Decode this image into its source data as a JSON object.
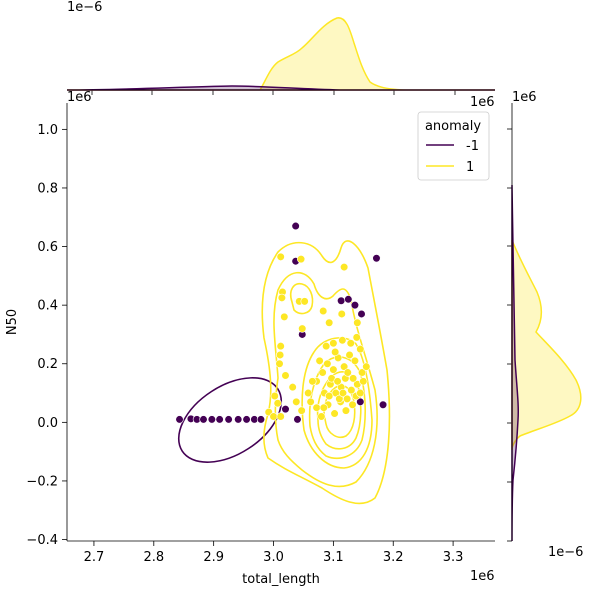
{
  "chart_data": {
    "type": "scatter",
    "xlabel": "total_length",
    "ylabel": "N50",
    "x_scale_label": "1e6",
    "y_scale_label": "1e6",
    "top_marginal_scale_label": "1e−6",
    "right_marginal_scale_label": "1e−6",
    "main_y_offset_label": "1e6",
    "main_x_offset_label": "1e6",
    "right_marginal_offset_label": "1e6",
    "xlim": [
      2.655,
      3.37
    ],
    "ylim": [
      -0.405,
      1.09
    ],
    "x_ticks": [
      2.7,
      2.8,
      2.9,
      3.0,
      3.1,
      3.2,
      3.3
    ],
    "y_ticks": [
      -0.4,
      -0.2,
      0.0,
      0.2,
      0.4,
      0.6,
      0.8,
      1.0
    ],
    "x_tick_labels": [
      "2.7",
      "2.8",
      "2.9",
      "3.0",
      "3.1",
      "3.2",
      "3.3"
    ],
    "y_tick_labels": [
      "−0.4",
      "−0.2",
      "0.0",
      "0.2",
      "0.4",
      "0.6",
      "0.8",
      "1.0"
    ],
    "legend": {
      "title": "anomaly",
      "placement": "top-right",
      "entries": [
        {
          "label": "-1",
          "color": "#440154"
        },
        {
          "label": "1",
          "color": "#fde725"
        }
      ]
    },
    "colors": {
      "anomaly": "#440154",
      "normal": "#fde725"
    },
    "series": [
      {
        "name": "-1",
        "color": "#440154",
        "points": [
          {
            "x": 2.843,
            "y": 0.01
          },
          {
            "x": 2.862,
            "y": 0.012
          },
          {
            "x": 2.872,
            "y": 0.01
          },
          {
            "x": 2.883,
            "y": 0.01
          },
          {
            "x": 2.897,
            "y": 0.01
          },
          {
            "x": 2.91,
            "y": 0.01
          },
          {
            "x": 2.925,
            "y": 0.01
          },
          {
            "x": 2.941,
            "y": 0.01
          },
          {
            "x": 2.955,
            "y": 0.01
          },
          {
            "x": 2.968,
            "y": 0.01
          },
          {
            "x": 2.979,
            "y": 0.01
          },
          {
            "x": 3.037,
            "y": 0.67
          },
          {
            "x": 3.037,
            "y": 0.55
          },
          {
            "x": 3.172,
            "y": 0.56
          },
          {
            "x": 3.113,
            "y": 0.415
          },
          {
            "x": 3.125,
            "y": 0.42
          },
          {
            "x": 3.147,
            "y": 0.37
          },
          {
            "x": 3.136,
            "y": 0.4
          },
          {
            "x": 3.183,
            "y": 0.06
          },
          {
            "x": 3.145,
            "y": 0.07
          },
          {
            "x": 3.04,
            "y": 0.01
          },
          {
            "x": 3.048,
            "y": 0.3
          },
          {
            "x": 3.02,
            "y": 0.045
          }
        ]
      },
      {
        "name": "1",
        "color": "#fde725",
        "points": [
          {
            "x": 3.012,
            "y": 0.565
          },
          {
            "x": 3.046,
            "y": 0.557
          },
          {
            "x": 3.118,
            "y": 0.53
          },
          {
            "x": 3.015,
            "y": 0.445
          },
          {
            "x": 3.014,
            "y": 0.425
          },
          {
            "x": 3.043,
            "y": 0.413
          },
          {
            "x": 3.052,
            "y": 0.413
          },
          {
            "x": 3.018,
            "y": 0.36
          },
          {
            "x": 3.048,
            "y": 0.32
          },
          {
            "x": 3.083,
            "y": 0.38
          },
          {
            "x": 3.093,
            "y": 0.34
          },
          {
            "x": 3.114,
            "y": 0.37
          },
          {
            "x": 3.14,
            "y": 0.34
          },
          {
            "x": 3.012,
            "y": 0.26
          },
          {
            "x": 3.011,
            "y": 0.23
          },
          {
            "x": 3.01,
            "y": 0.2
          },
          {
            "x": 3.02,
            "y": 0.16
          },
          {
            "x": 3.032,
            "y": 0.12
          },
          {
            "x": 3.002,
            "y": 0.09
          },
          {
            "x": 3.007,
            "y": 0.065
          },
          {
            "x": 2.992,
            "y": 0.035
          },
          {
            "x": 3.0,
            "y": 0.02
          },
          {
            "x": 3.012,
            "y": 0.02
          },
          {
            "x": 3.038,
            "y": 0.07
          },
          {
            "x": 3.047,
            "y": 0.04
          },
          {
            "x": 3.062,
            "y": 0.07
          },
          {
            "x": 3.072,
            "y": 0.05
          },
          {
            "x": 3.08,
            "y": 0.02
          },
          {
            "x": 3.091,
            "y": 0.06
          },
          {
            "x": 3.102,
            "y": 0.03
          },
          {
            "x": 3.112,
            "y": 0.07
          },
          {
            "x": 3.121,
            "y": 0.04
          },
          {
            "x": 3.132,
            "y": 0.06
          },
          {
            "x": 3.085,
            "y": 0.1
          },
          {
            "x": 3.095,
            "y": 0.13
          },
          {
            "x": 3.104,
            "y": 0.1
          },
          {
            "x": 3.113,
            "y": 0.12
          },
          {
            "x": 3.12,
            "y": 0.15
          },
          {
            "x": 3.13,
            "y": 0.11
          },
          {
            "x": 3.14,
            "y": 0.13
          },
          {
            "x": 3.148,
            "y": 0.17
          },
          {
            "x": 3.155,
            "y": 0.19
          },
          {
            "x": 3.082,
            "y": 0.17
          },
          {
            "x": 3.09,
            "y": 0.2
          },
          {
            "x": 3.1,
            "y": 0.18
          },
          {
            "x": 3.108,
            "y": 0.22
          },
          {
            "x": 3.118,
            "y": 0.19
          },
          {
            "x": 3.127,
            "y": 0.23
          },
          {
            "x": 3.136,
            "y": 0.21
          },
          {
            "x": 3.145,
            "y": 0.25
          },
          {
            "x": 3.088,
            "y": 0.26
          },
          {
            "x": 3.1,
            "y": 0.27
          },
          {
            "x": 3.115,
            "y": 0.28
          },
          {
            "x": 3.129,
            "y": 0.27
          },
          {
            "x": 3.139,
            "y": 0.29
          },
          {
            "x": 3.072,
            "y": 0.14
          },
          {
            "x": 3.077,
            "y": 0.21
          },
          {
            "x": 3.097,
            "y": 0.15
          },
          {
            "x": 3.11,
            "y": 0.08
          },
          {
            "x": 3.138,
            "y": 0.09
          },
          {
            "x": 3.15,
            "y": 0.14
          },
          {
            "x": 3.103,
            "y": 0.24
          },
          {
            "x": 3.124,
            "y": 0.17
          },
          {
            "x": 3.133,
            "y": 0.15
          },
          {
            "x": 3.093,
            "y": 0.09
          },
          {
            "x": 3.058,
            "y": 0.1
          },
          {
            "x": 3.065,
            "y": 0.14
          },
          {
            "x": 3.116,
            "y": 0.1
          },
          {
            "x": 3.107,
            "y": 0.14
          },
          {
            "x": 3.084,
            "y": 0.05
          },
          {
            "x": 3.123,
            "y": 0.08
          },
          {
            "x": 3.145,
            "y": 0.1
          }
        ]
      }
    ],
    "density_contours": [
      {
        "name": "-1",
        "color": "#440154",
        "center": [
          2.918,
          0.01
        ],
        "semi_axes_data": [
          0.068,
          0.11
        ],
        "rotation_deg": -33
      },
      {
        "name": "1",
        "color": "#fde725",
        "center": [
          3.11,
          0.19
        ],
        "levels": 7
      }
    ],
    "marginal_top": {
      "placement": "top",
      "series": [
        "-1",
        "1"
      ]
    },
    "marginal_right": {
      "placement": "right",
      "series": [
        "-1",
        "1"
      ]
    }
  }
}
